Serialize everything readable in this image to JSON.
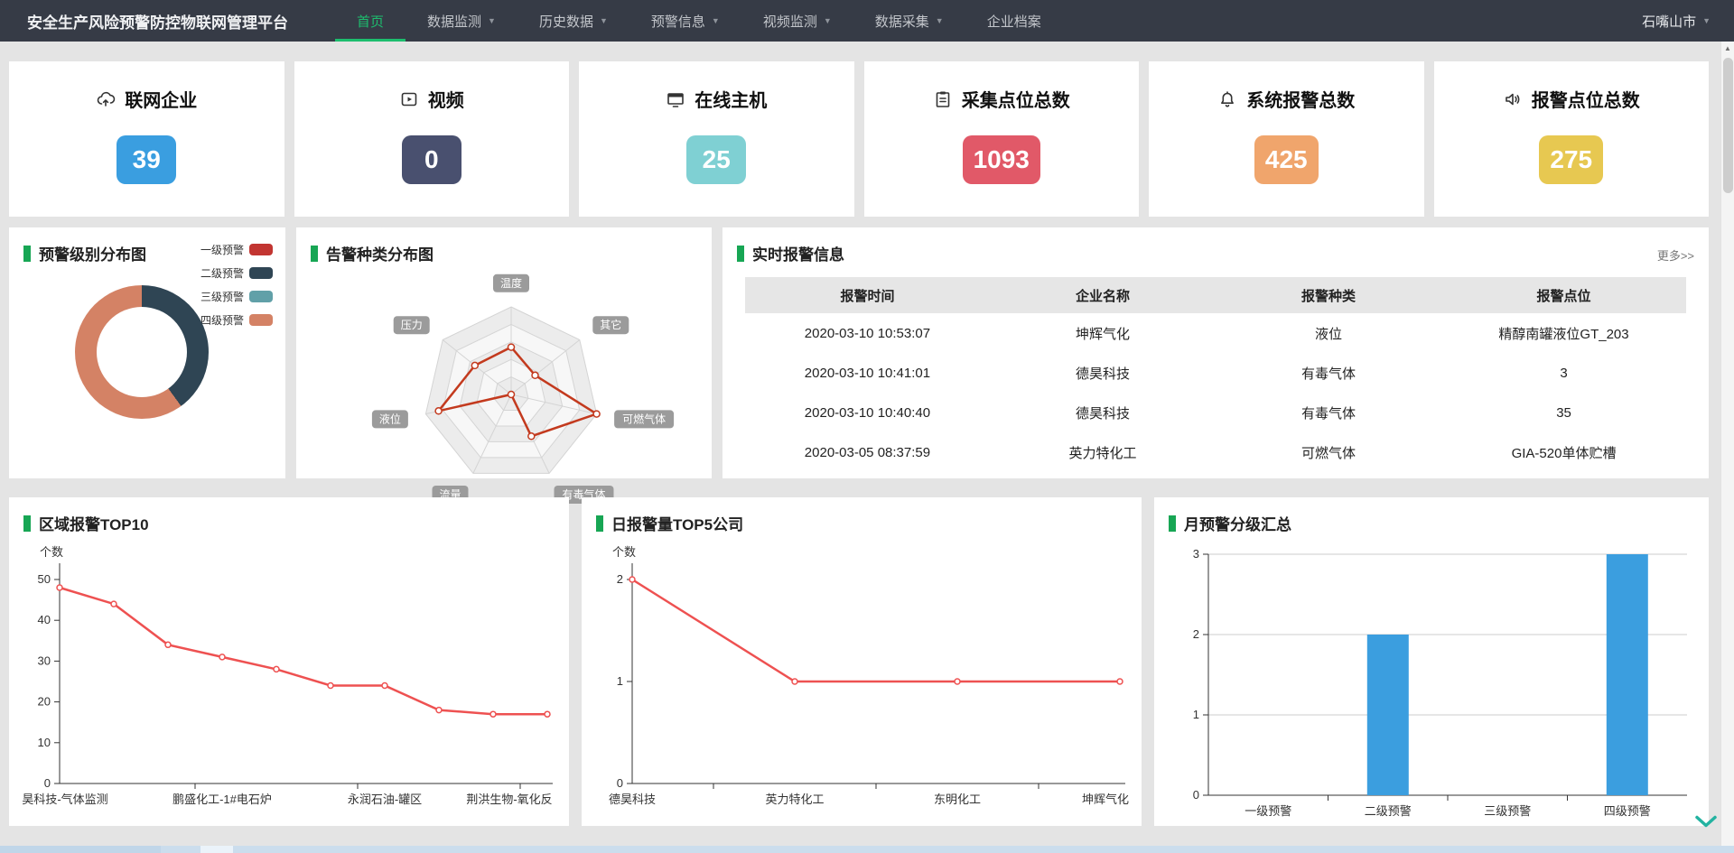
{
  "navbar": {
    "title": "安全生产风险预警防控物联网管理平台",
    "items": [
      {
        "label": "首页",
        "active": true,
        "caret": false
      },
      {
        "label": "数据监测",
        "active": false,
        "caret": true
      },
      {
        "label": "历史数据",
        "active": false,
        "caret": true
      },
      {
        "label": "预警信息",
        "active": false,
        "caret": true
      },
      {
        "label": "视频监测",
        "active": false,
        "caret": true
      },
      {
        "label": "数据采集",
        "active": false,
        "caret": true
      },
      {
        "label": "企业档案",
        "active": false,
        "caret": false
      }
    ],
    "region": "石嘴山市",
    "accent_color": "#1dbd6e"
  },
  "stat_cards": [
    {
      "label": "联网企业",
      "value": "39",
      "color": "#3a9ee0",
      "icon": "cloud-upload-icon"
    },
    {
      "label": "视频",
      "value": "0",
      "color": "#49506f",
      "icon": "video-icon"
    },
    {
      "label": "在线主机",
      "value": "25",
      "color": "#7fd0d3",
      "icon": "monitor-icon"
    },
    {
      "label": "采集点位总数",
      "value": "1093",
      "color": "#e15968",
      "icon": "clipboard-icon"
    },
    {
      "label": "系统报警总数",
      "value": "425",
      "color": "#f0a56c",
      "icon": "bell-icon"
    },
    {
      "label": "报警点位总数",
      "value": "275",
      "color": "#e7c851",
      "icon": "speaker-icon"
    }
  ],
  "panels": {
    "alarm_level": {
      "title": "预警级别分布图"
    },
    "alarm_type": {
      "title": "告警种类分布图"
    },
    "realtime": {
      "title": "实时报警信息",
      "more_label": "更多>>",
      "columns": [
        "报警时间",
        "企业名称",
        "报警种类",
        "报警点位"
      ],
      "rows": [
        [
          "2020-03-10 10:53:07",
          "坤辉气化",
          "液位",
          "精醇南罐液位GT_203"
        ],
        [
          "2020-03-10 10:41:01",
          "德昊科技",
          "有毒气体",
          "3"
        ],
        [
          "2020-03-10 10:40:40",
          "德昊科技",
          "有毒气体",
          "35"
        ],
        [
          "2020-03-05 08:37:59",
          "英力特化工",
          "可燃气体",
          "GIA-520单体贮槽"
        ]
      ]
    },
    "region_top10": {
      "title": "区域报警TOP10"
    },
    "daily_top5": {
      "title": "日报警量TOP5公司"
    },
    "monthly_summary": {
      "title": "月预警分级汇总"
    }
  },
  "chart_data": [
    {
      "type": "pie",
      "subtype": "donut",
      "title": "预警级别分布图",
      "legend_position": "top-right",
      "legend": [
        {
          "label": "一级预警",
          "color": "#c23531",
          "value": 0
        },
        {
          "label": "二级预警",
          "color": "#2f4554",
          "value": 2
        },
        {
          "label": "三级预警",
          "color": "#61a0a8",
          "value": 0
        },
        {
          "label": "四级预警",
          "color": "#d48265",
          "value": 3
        }
      ]
    },
    {
      "type": "radar",
      "title": "告警种类分布图",
      "axes": [
        "温度",
        "其它",
        "可燃气体",
        "有毒气体",
        "流量",
        "液位",
        "压力"
      ],
      "values_fraction_of_max": [
        0.54,
        0.35,
        1.0,
        0.53,
        0.0,
        0.85,
        0.53
      ],
      "rings": 5,
      "color": "#c33a1e",
      "axis_label_style": "gray-badge-white-text"
    },
    {
      "type": "line",
      "title": "区域报警TOP10",
      "ylabel": "个数",
      "ylim": [
        0,
        50
      ],
      "yticks": [
        0,
        10,
        20,
        30,
        40,
        50
      ],
      "values": [
        48,
        44,
        34,
        31,
        28,
        24,
        24,
        18,
        17,
        17
      ],
      "x_labels": [
        {
          "index": 0,
          "label": "昊科技-气体监测"
        },
        {
          "index": 3,
          "label": "鹏盛化工-1#电石炉"
        },
        {
          "index": 6,
          "label": "永润石油-罐区"
        },
        {
          "index": 9,
          "label": "荆洪生物-氧化反"
        }
      ],
      "xtick_boundaries": [
        2.5,
        5.5,
        8.5
      ],
      "color": "#ee5151",
      "grid": false
    },
    {
      "type": "line",
      "title": "日报警量TOP5公司",
      "ylabel": "个数",
      "ylim": [
        0,
        2
      ],
      "yticks": [
        0,
        1,
        2
      ],
      "values": [
        2,
        1,
        1,
        1
      ],
      "x_labels": [
        {
          "index": 0,
          "label": "德昊科技"
        },
        {
          "index": 1,
          "label": "英力特化工"
        },
        {
          "index": 2,
          "label": "东明化工"
        },
        {
          "index": 3,
          "label": "坤辉气化"
        }
      ],
      "xtick_boundaries": [
        0.5,
        1.5,
        2.5
      ],
      "color": "#ee5151",
      "grid": false
    },
    {
      "type": "bar",
      "title": "月预警分级汇总",
      "ylim": [
        0,
        3
      ],
      "yticks": [
        0,
        1,
        2,
        3
      ],
      "categories": [
        "一级预警",
        "二级预警",
        "三级预警",
        "四级预警"
      ],
      "values": [
        0,
        2,
        0,
        3
      ],
      "color": "#3b9edf",
      "grid": true
    }
  ]
}
